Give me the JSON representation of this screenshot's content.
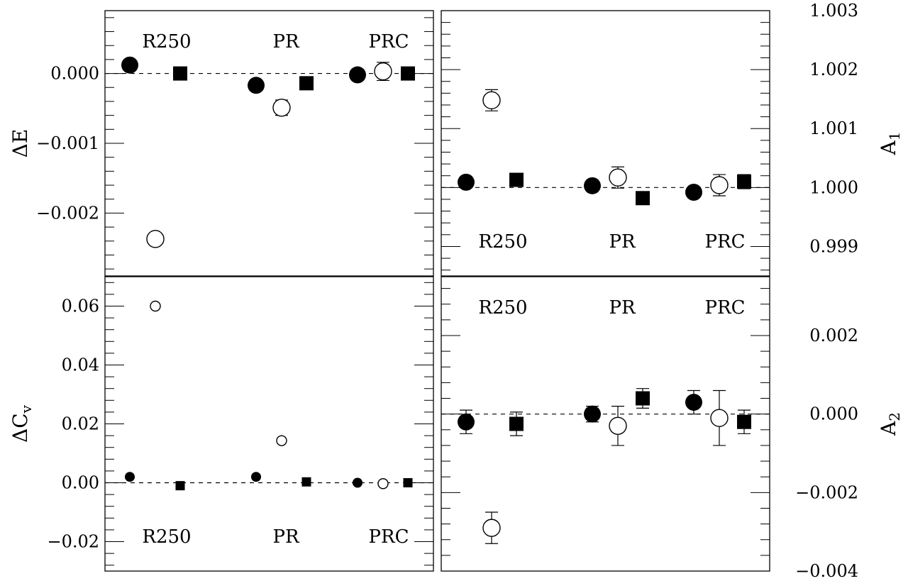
{
  "chart_data": [
    {
      "type": "scatter",
      "panel": "top-left",
      "ylabel": "ΔE",
      "ylim": [
        -0.0029,
        0.0009
      ],
      "y_ticks": [
        0.0,
        -0.001,
        -0.002
      ],
      "y_tick_labels": [
        "0.000",
        "−0.001",
        "−0.002"
      ],
      "y_axis_side": "left",
      "group_label_position": "top",
      "groups": [
        "R250",
        "PR",
        "PRC"
      ],
      "reference_line": 0.0,
      "series": [
        {
          "marker": "filled-circle",
          "points": [
            {
              "group": "R250",
              "y": 0.00012,
              "err": 0.0
            },
            {
              "group": "PR",
              "y": -0.00017,
              "err": 0.0
            },
            {
              "group": "PRC",
              "y": -2e-05,
              "err": 0.0
            }
          ]
        },
        {
          "marker": "open-circle",
          "points": [
            {
              "group": "R250",
              "y": -0.00237,
              "err": 2e-05
            },
            {
              "group": "PR",
              "y": -0.00049,
              "err": 0.00011
            },
            {
              "group": "PRC",
              "y": 3e-05,
              "err": 0.00013
            }
          ]
        },
        {
          "marker": "filled-square",
          "points": [
            {
              "group": "R250",
              "y": 0.0,
              "err": 0.0
            },
            {
              "group": "PR",
              "y": -0.00014,
              "err": 0.0
            },
            {
              "group": "PRC",
              "y": 0.0,
              "err": 7e-05
            }
          ]
        }
      ]
    },
    {
      "type": "scatter",
      "panel": "top-right",
      "ylabel": "A_1",
      "ylim": [
        0.9985,
        1.003
      ],
      "y_ticks": [
        1.003,
        1.002,
        1.001,
        1.0,
        0.999
      ],
      "y_tick_labels": [
        "1.003",
        "1.002",
        "1.001",
        "1.000",
        "0.999"
      ],
      "y_axis_side": "right",
      "group_label_position": "bottom",
      "groups": [
        "R250",
        "PR",
        "PRC"
      ],
      "reference_line": 1.0,
      "series": [
        {
          "marker": "filled-circle",
          "points": [
            {
              "group": "R250",
              "y": 1.00009,
              "err": 4e-05
            },
            {
              "group": "PR",
              "y": 1.00003,
              "err": 3e-05
            },
            {
              "group": "PRC",
              "y": 0.99992,
              "err": 4e-05
            }
          ]
        },
        {
          "marker": "open-circle",
          "points": [
            {
              "group": "R250",
              "y": 1.00148,
              "err": 0.00018
            },
            {
              "group": "PR",
              "y": 1.00017,
              "err": 0.00018
            },
            {
              "group": "PRC",
              "y": 1.00004,
              "err": 0.00018
            }
          ]
        },
        {
          "marker": "filled-square",
          "points": [
            {
              "group": "R250",
              "y": 1.00013,
              "err": 6e-05
            },
            {
              "group": "PR",
              "y": 0.99982,
              "err": 4e-05
            },
            {
              "group": "PRC",
              "y": 1.0001,
              "err": 0.00012
            }
          ]
        }
      ]
    },
    {
      "type": "scatter",
      "panel": "bottom-left",
      "ylabel": "ΔC_v",
      "ylim": [
        -0.03,
        0.07
      ],
      "y_ticks": [
        0.06,
        0.04,
        0.02,
        0.0,
        -0.02
      ],
      "y_tick_labels": [
        "0.06",
        "0.04",
        "0.02",
        "0.00",
        "−0.02"
      ],
      "y_axis_side": "left",
      "group_label_position": "bottom",
      "groups": [
        "R250",
        "PR",
        "PRC"
      ],
      "reference_line": 0.0,
      "series": [
        {
          "marker": "filled-circle",
          "points": [
            {
              "group": "R250",
              "y": 0.002,
              "err": 0.0
            },
            {
              "group": "PR",
              "y": 0.002,
              "err": 0.0
            },
            {
              "group": "PRC",
              "y": 0.0,
              "err": 0.0
            }
          ]
        },
        {
          "marker": "open-circle",
          "points": [
            {
              "group": "R250",
              "y": 0.06,
              "err": 0.0
            },
            {
              "group": "PR",
              "y": 0.0143,
              "err": 0.0
            },
            {
              "group": "PRC",
              "y": -0.0003,
              "err": 0.0
            }
          ]
        },
        {
          "marker": "filled-square",
          "points": [
            {
              "group": "R250",
              "y": -0.001,
              "err": 0.0
            },
            {
              "group": "PR",
              "y": 0.0003,
              "err": 0.0
            },
            {
              "group": "PRC",
              "y": 0.0,
              "err": 0.0
            }
          ]
        }
      ]
    },
    {
      "type": "scatter",
      "panel": "bottom-right",
      "ylabel": "A_2",
      "ylim": [
        -0.004,
        0.0035
      ],
      "y_ticks": [
        0.002,
        0.0,
        -0.002,
        -0.004
      ],
      "y_tick_labels": [
        "0.002",
        "0.000",
        "−0.002",
        "−0.004"
      ],
      "y_axis_side": "right",
      "group_label_position": "top",
      "groups": [
        "R250",
        "PR",
        "PRC"
      ],
      "reference_line": 0.0,
      "series": [
        {
          "marker": "filled-circle",
          "points": [
            {
              "group": "R250",
              "y": -0.0002,
              "err": 0.0003
            },
            {
              "group": "PR",
              "y": 0.0,
              "err": 0.0002
            },
            {
              "group": "PRC",
              "y": 0.0003,
              "err": 0.0003
            }
          ]
        },
        {
          "marker": "open-circle",
          "points": [
            {
              "group": "R250",
              "y": -0.0029,
              "err": 0.0004
            },
            {
              "group": "PR",
              "y": -0.0003,
              "err": 0.0005
            },
            {
              "group": "PRC",
              "y": -0.0001,
              "err": 0.0007
            }
          ]
        },
        {
          "marker": "filled-square",
          "points": [
            {
              "group": "R250",
              "y": -0.00025,
              "err": 0.0003
            },
            {
              "group": "PR",
              "y": 0.0004,
              "err": 0.00025
            },
            {
              "group": "PRC",
              "y": -0.0002,
              "err": 0.0003
            }
          ]
        }
      ]
    }
  ]
}
